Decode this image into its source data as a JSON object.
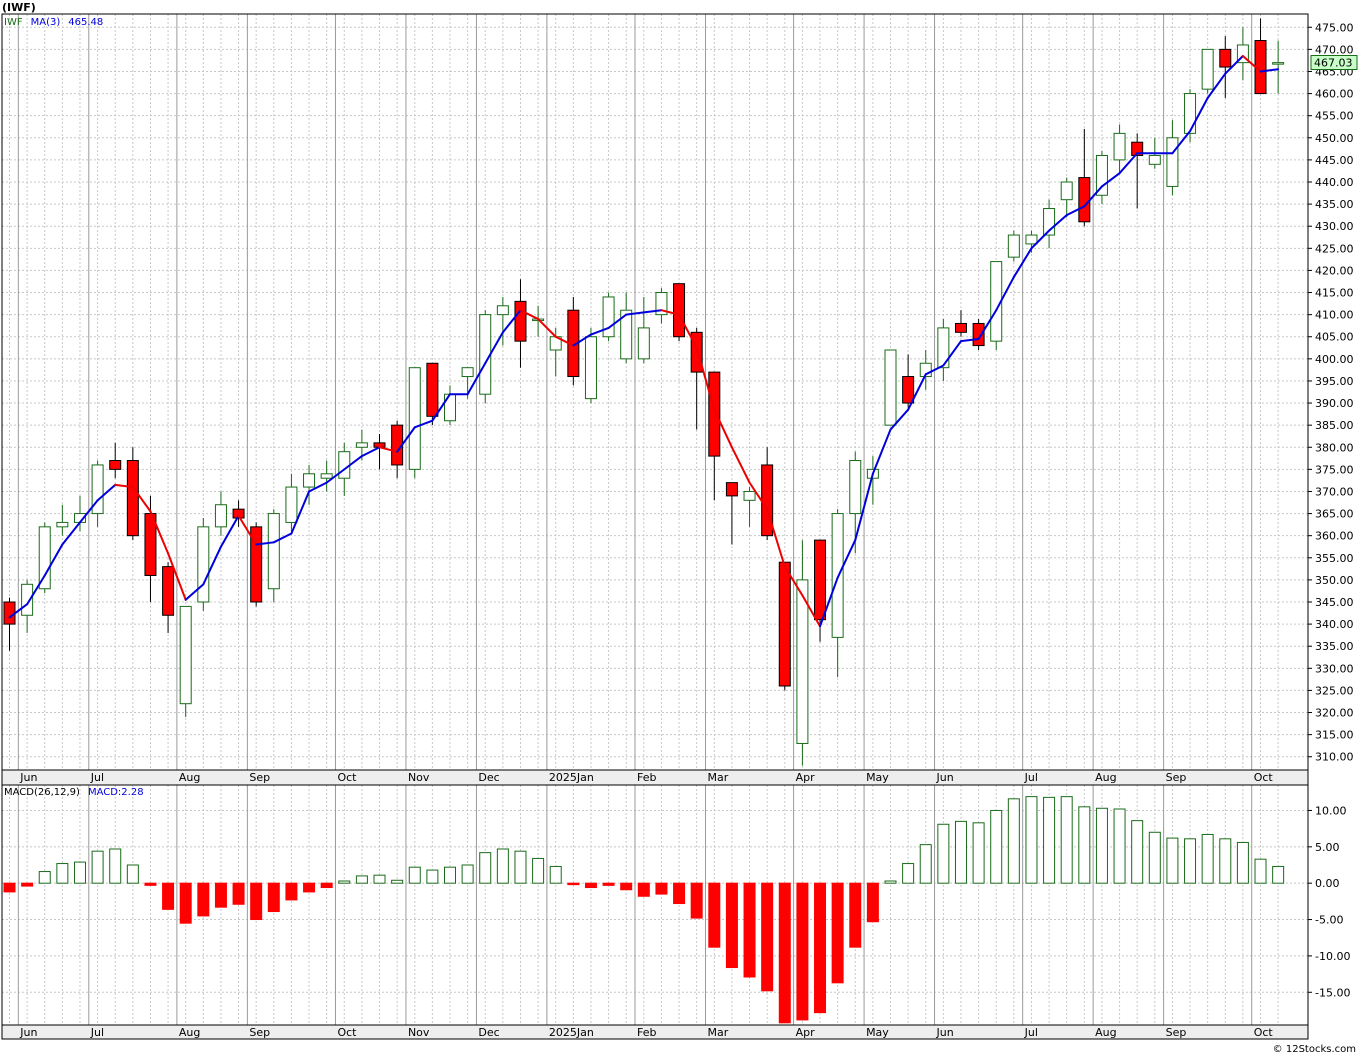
{
  "symbol": "(IWF)",
  "legend_price": {
    "ticker": "IWF",
    "ma_label": "MA(3)",
    "ma_value": "465.48"
  },
  "legend_macd": {
    "label": "MACD(26,12,9)",
    "value_label": "MACD:2.28"
  },
  "last_price_label": "467.03",
  "footer": "© 12Stocks.com",
  "colors": {
    "up": "#1a6b1a",
    "down": "#ff0000",
    "ma_up": "#0000dd",
    "ma_down": "#ee0000",
    "grid": "#c8c8c8",
    "axis_bg": "#eeeeee",
    "last_bg": "#c8ffc8"
  },
  "chart_data": [
    {
      "type": "candlestick",
      "title": "(IWF)",
      "ylim": [
        307,
        478
      ],
      "y_ticks": [
        "310.00",
        "315.00",
        "320.00",
        "325.00",
        "330.00",
        "335.00",
        "340.00",
        "345.00",
        "350.00",
        "355.00",
        "360.00",
        "365.00",
        "370.00",
        "375.00",
        "380.00",
        "385.00",
        "390.00",
        "395.00",
        "400.00",
        "405.00",
        "410.00",
        "415.00",
        "420.00",
        "425.00",
        "430.00",
        "435.00",
        "440.00",
        "445.00",
        "450.00",
        "455.00",
        "460.00",
        "465.00",
        "470.00",
        "475.00"
      ],
      "months": [
        {
          "label": "Jun",
          "week": 1
        },
        {
          "label": "Jul",
          "week": 5
        },
        {
          "label": "Aug",
          "week": 10
        },
        {
          "label": "Sep",
          "week": 14
        },
        {
          "label": "Oct",
          "week": 19
        },
        {
          "label": "Nov",
          "week": 23
        },
        {
          "label": "Dec",
          "week": 27
        },
        {
          "label": "2025Jan",
          "week": 31
        },
        {
          "label": "Feb",
          "week": 36
        },
        {
          "label": "Mar",
          "week": 40
        },
        {
          "label": "Apr",
          "week": 45
        },
        {
          "label": "May",
          "week": 49
        },
        {
          "label": "Jun",
          "week": 53
        },
        {
          "label": "Jul",
          "week": 58
        },
        {
          "label": "Aug",
          "week": 62
        },
        {
          "label": "Sep",
          "week": 66
        },
        {
          "label": "Oct",
          "week": 71
        }
      ],
      "candles": [
        [
          345,
          346,
          334,
          340
        ],
        [
          342,
          350,
          338,
          349
        ],
        [
          348,
          363,
          347,
          362
        ],
        [
          362,
          367,
          360,
          363
        ],
        [
          363,
          369,
          361,
          365
        ],
        [
          365,
          377,
          362,
          376
        ],
        [
          377,
          381,
          373,
          375
        ],
        [
          377,
          380,
          359,
          360
        ],
        [
          365,
          369,
          345,
          351
        ],
        [
          353,
          354,
          338,
          342
        ],
        [
          322,
          344,
          319,
          344
        ],
        [
          345,
          364,
          343,
          362
        ],
        [
          362,
          370,
          360,
          367
        ],
        [
          366,
          368,
          362,
          364
        ],
        [
          362,
          363,
          344,
          345
        ],
        [
          348,
          366,
          345,
          365
        ],
        [
          363,
          374,
          361,
          371
        ],
        [
          371,
          376,
          367,
          374
        ],
        [
          373,
          377,
          370,
          374
        ],
        [
          373,
          381,
          369,
          379
        ],
        [
          380,
          384,
          377,
          381
        ],
        [
          381,
          383,
          375,
          380
        ],
        [
          385,
          386,
          373,
          376
        ],
        [
          375,
          398,
          373,
          398
        ],
        [
          399,
          399,
          385,
          387
        ],
        [
          386,
          394,
          385,
          392
        ],
        [
          396,
          398,
          391,
          398
        ],
        [
          392,
          411,
          390,
          410
        ],
        [
          410,
          414,
          403,
          412
        ],
        [
          413,
          418,
          398,
          404
        ],
        [
          409,
          412,
          405,
          409
        ],
        [
          402,
          407,
          396,
          405
        ],
        [
          411,
          414,
          394,
          396
        ],
        [
          391,
          407,
          390,
          405
        ],
        [
          405,
          415,
          404,
          414
        ],
        [
          400,
          415,
          399,
          411
        ],
        [
          400,
          414,
          399,
          407
        ],
        [
          410,
          416,
          408,
          415
        ],
        [
          417,
          417,
          404,
          405
        ],
        [
          406,
          407,
          384,
          397
        ],
        [
          397,
          397,
          368,
          378
        ],
        [
          372,
          372,
          358,
          369
        ],
        [
          368,
          371,
          362,
          370
        ],
        [
          376,
          380,
          359,
          360
        ],
        [
          354,
          354,
          325,
          326
        ],
        [
          313,
          359,
          308,
          350
        ],
        [
          359,
          359,
          336,
          341
        ],
        [
          337,
          366,
          328,
          365
        ],
        [
          365,
          379,
          356,
          377
        ],
        [
          373,
          378,
          367,
          375
        ],
        [
          385,
          402,
          385,
          402
        ],
        [
          396,
          401,
          389,
          390
        ],
        [
          396,
          402,
          393,
          399
        ],
        [
          398,
          409,
          395,
          407
        ],
        [
          408,
          411,
          405,
          406
        ],
        [
          408,
          409,
          402,
          403
        ],
        [
          404,
          422,
          402,
          422
        ],
        [
          423,
          429,
          422,
          428
        ],
        [
          426,
          429,
          424,
          428
        ],
        [
          428,
          436,
          425,
          434
        ],
        [
          436,
          441,
          432,
          440
        ],
        [
          441,
          452,
          430,
          431
        ],
        [
          437,
          447,
          435,
          446
        ],
        [
          445,
          453,
          442,
          451
        ],
        [
          449,
          451,
          434,
          446
        ],
        [
          444,
          450,
          443,
          446
        ],
        [
          439,
          454,
          437,
          450
        ],
        [
          451,
          461,
          449,
          460
        ],
        [
          461,
          470,
          460,
          470
        ],
        [
          470,
          473,
          459,
          466
        ],
        [
          467,
          475,
          463,
          471
        ],
        [
          472,
          477,
          461,
          460
        ],
        [
          467,
          472,
          460,
          467
        ]
      ],
      "ma": [
        341.5,
        344.5,
        351.0,
        358.0,
        363.0,
        368.0,
        371.5,
        371.0,
        365.5,
        356.0,
        345.5,
        349.0,
        357.5,
        364.5,
        358.0,
        358.5,
        360.5,
        370.0,
        372.0,
        375.0,
        378.0,
        380.0,
        379.0,
        384.5,
        386.0,
        392.0,
        392.0,
        399.0,
        406.0,
        411.0,
        409.0,
        405.0,
        403.0,
        405.5,
        407.0,
        410.0,
        410.5,
        411.0,
        410.0,
        402.5,
        388.5,
        380.0,
        372.0,
        366.0,
        353.0,
        346.5,
        339.5,
        350.5,
        359.0,
        374.0,
        384.0,
        388.5,
        396.5,
        398.5,
        404.0,
        404.5,
        411.0,
        418.5,
        425.0,
        429.0,
        432.5,
        434.5,
        439.0,
        442.0,
        446.5,
        446.5,
        446.5,
        451.5,
        459.0,
        464.5,
        468.5,
        465.0,
        465.5
      ],
      "last_close": "467.03"
    },
    {
      "type": "bar",
      "title": "MACD(26,12,9)",
      "ylim": [
        -19.5,
        13.5
      ],
      "y_ticks": [
        "10.00",
        "5.00",
        "0.00",
        "-5.00",
        "-10.00",
        "-15.00"
      ],
      "y_tick_values": [
        10,
        5,
        0,
        -5,
        -10,
        -15
      ],
      "values": [
        -1.2,
        -0.4,
        1.6,
        2.7,
        2.9,
        4.4,
        4.7,
        2.5,
        -0.3,
        -3.6,
        -5.5,
        -4.5,
        -3.3,
        -2.9,
        -5.0,
        -3.9,
        -2.3,
        -1.2,
        -0.6,
        0.3,
        1.0,
        1.1,
        0.4,
        2.2,
        1.8,
        2.2,
        2.5,
        4.2,
        4.7,
        4.4,
        3.4,
        2.3,
        -0.2,
        -0.6,
        -0.3,
        -0.9,
        -1.8,
        -1.5,
        -2.8,
        -4.8,
        -8.8,
        -11.6,
        -12.9,
        -14.8,
        -19.2,
        -18.8,
        -17.8,
        -13.7,
        -8.8,
        -5.3,
        0.3,
        2.7,
        5.3,
        8.1,
        8.5,
        8.3,
        10.0,
        11.6,
        11.9,
        11.8,
        11.9,
        10.5,
        10.3,
        10.2,
        8.6,
        7.0,
        6.2,
        6.1,
        6.7,
        6.1,
        5.6,
        3.3,
        2.3
      ]
    }
  ]
}
